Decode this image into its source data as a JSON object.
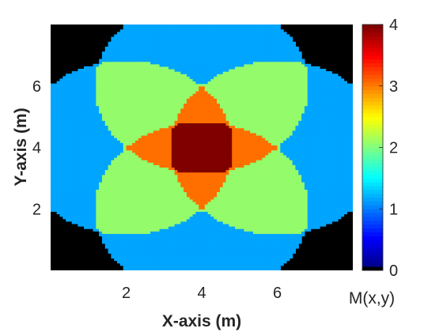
{
  "chart_data": {
    "type": "heatmap",
    "title": "",
    "xlabel": "X-axis (m)",
    "ylabel": "Y-axis (m)",
    "xlim": [
      0,
      8
    ],
    "ylim": [
      0,
      8
    ],
    "x_ticks": [
      2,
      4,
      6
    ],
    "y_ticks": [
      2,
      4,
      6
    ],
    "x_tick_labels": [
      "2",
      "4",
      "6"
    ],
    "y_tick_labels": [
      "2",
      "4",
      "6"
    ],
    "grid": false,
    "colormap": "jet",
    "background_color": "#000000",
    "colorbar": {
      "label": "M(x,y)",
      "range": [
        0,
        4
      ],
      "ticks": [
        0,
        1,
        2,
        3,
        4
      ],
      "tick_labels": [
        "0",
        "1",
        "2",
        "3",
        "4"
      ],
      "placement": "right"
    },
    "field_description_values": {
      "sources": [
        {
          "x": 2,
          "y": 4
        },
        {
          "x": 6,
          "y": 4
        },
        {
          "x": 4,
          "y": 2
        },
        {
          "x": 4,
          "y": 6
        }
      ],
      "radius": 2.83,
      "levels": [
        0,
        1,
        2,
        3,
        4
      ]
    }
  }
}
